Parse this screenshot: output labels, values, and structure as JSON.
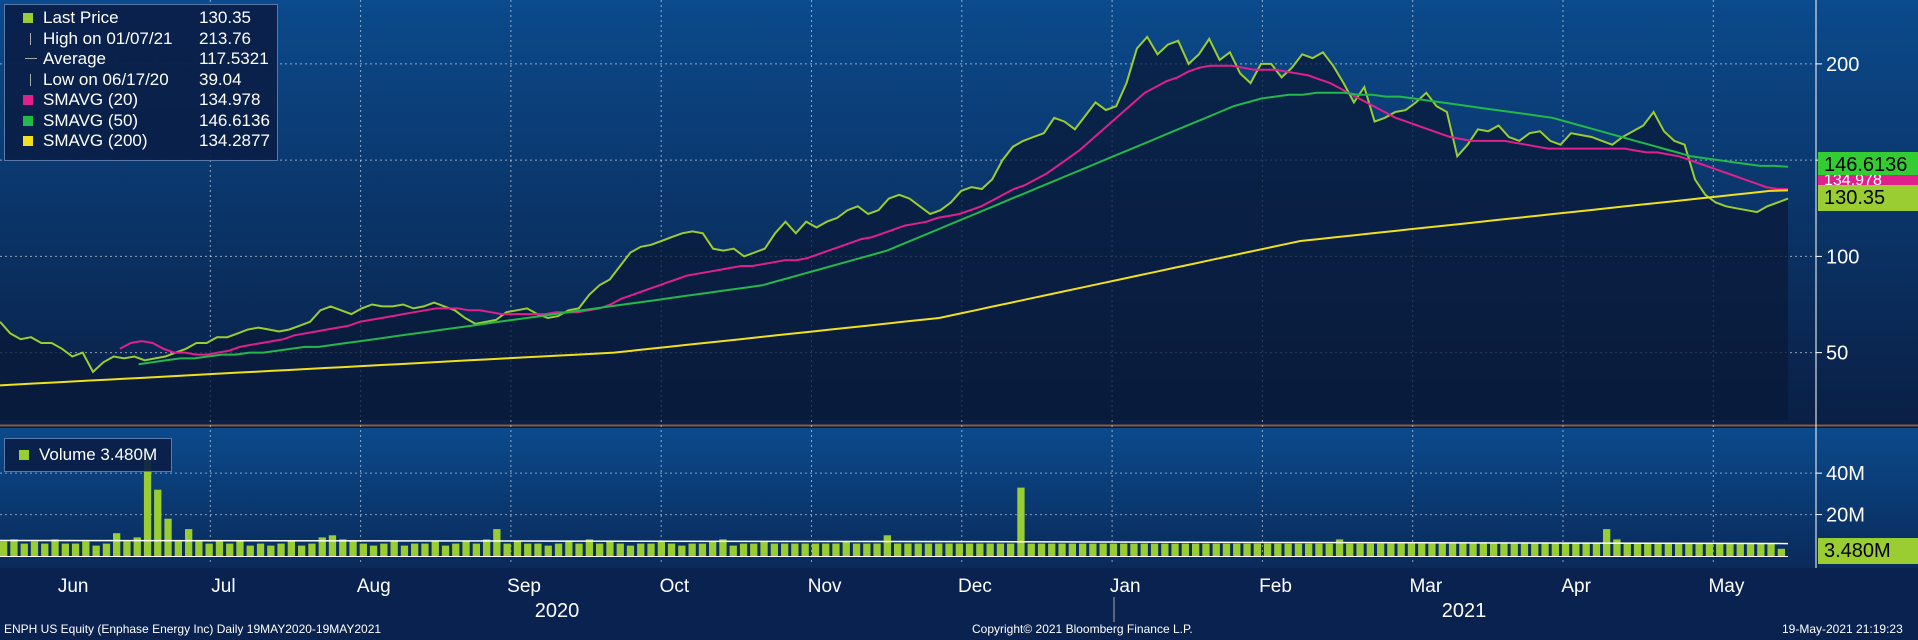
{
  "legend": {
    "items": [
      {
        "label": "Last Price",
        "value": "130.35",
        "color": "#9acd32",
        "mark": "square"
      },
      {
        "label": "High on 01/07/21",
        "value": "213.76",
        "color": "#aaaaaa",
        "mark": "high-tick"
      },
      {
        "label": "Average",
        "value": "117.5321",
        "color": "#aaaaaa",
        "mark": "dash"
      },
      {
        "label": "Low on 06/17/20",
        "value": "39.04",
        "color": "#aaaaaa",
        "mark": "low-tick"
      },
      {
        "label": "SMAVG (20)",
        "value": "134.978",
        "color": "#e0208c",
        "mark": "square"
      },
      {
        "label": "SMAVG (50)",
        "value": "146.6136",
        "color": "#22b84a",
        "mark": "square"
      },
      {
        "label": "SMAVG (200)",
        "value": "134.2877",
        "color": "#f0e020",
        "mark": "square"
      }
    ]
  },
  "volume_legend": {
    "label": "Volume 3.480M",
    "color": "#9acd32"
  },
  "tags": {
    "sma50": {
      "text": "146.6136",
      "color": "#33cc33"
    },
    "sma20": {
      "text": "134.978",
      "color": "#e0208c"
    },
    "last": {
      "text": "130.35",
      "color": "#9acd32"
    },
    "volume": {
      "text": "3.480M",
      "color": "#9acd32"
    }
  },
  "footer": {
    "left": "ENPH US Equity (Enphase Energy Inc)  Daily 19MAY2020-19MAY2021",
    "center": "Copyright© 2021 Bloomberg Finance L.P.",
    "right": "19-May-2021 21:19:23"
  },
  "chart_data": [
    {
      "type": "line",
      "title": "",
      "x_labels": [
        "Jun",
        "Jul",
        "Aug",
        "Sep",
        "Oct",
        "Nov",
        "Dec",
        "Jan",
        "Feb",
        "Mar",
        "Apr",
        "May"
      ],
      "years": [
        "2020",
        "2021"
      ],
      "y_ticks": [
        50,
        100,
        150,
        200
      ],
      "y_tick_labels": [
        "50",
        "100",
        "",
        "200"
      ],
      "ylim": [
        15,
        228
      ],
      "grid": true,
      "legend_position": "top-left",
      "colors": {
        "price": "#9acd32",
        "sma20": "#e0208c",
        "sma50": "#22b84a",
        "sma200": "#f0e020"
      },
      "series": [
        {
          "name": "Last Price",
          "key": "price",
          "values": [
            66,
            60,
            57,
            58,
            55,
            55,
            52,
            48,
            50,
            40,
            45,
            48,
            47,
            48,
            46,
            47,
            48,
            50,
            52,
            55,
            55,
            58,
            58,
            60,
            62,
            63,
            62,
            61,
            62,
            64,
            66,
            72,
            74,
            72,
            70,
            73,
            75,
            74,
            74,
            75,
            73,
            74,
            76,
            74,
            72,
            68,
            65,
            66,
            67,
            71,
            72,
            73,
            70,
            68,
            69,
            72,
            73,
            80,
            85,
            88,
            95,
            102,
            105,
            106,
            108,
            110,
            112,
            113,
            112,
            104,
            103,
            104,
            100,
            102,
            104,
            112,
            118,
            112,
            118,
            115,
            118,
            120,
            124,
            126,
            122,
            124,
            130,
            132,
            130,
            126,
            122,
            124,
            128,
            134,
            136,
            135,
            140,
            150,
            157,
            160,
            162,
            164,
            172,
            170,
            166,
            173,
            180,
            176,
            178,
            190,
            208,
            214,
            205,
            210,
            212,
            200,
            205,
            213,
            202,
            206,
            195,
            190,
            200,
            200,
            193,
            198,
            205,
            203,
            206,
            199,
            190,
            180,
            188,
            170,
            172,
            175,
            176,
            180,
            185,
            178,
            175,
            152,
            158,
            166,
            165,
            168,
            162,
            160,
            164,
            165,
            160,
            158,
            164,
            163,
            162,
            160,
            158,
            162,
            165,
            168,
            175,
            165,
            160,
            158,
            140,
            132,
            128,
            126,
            125,
            124,
            123,
            126,
            128,
            130
          ]
        },
        {
          "name": "SMAVG (20)",
          "key": "sma20",
          "values": [
            null,
            null,
            null,
            null,
            null,
            null,
            null,
            null,
            null,
            null,
            null,
            52,
            55,
            56,
            55,
            52,
            50,
            50,
            49,
            49,
            50,
            51,
            53,
            54,
            55,
            56,
            57,
            59,
            60,
            61,
            62,
            63,
            64,
            66,
            67,
            68,
            69,
            70,
            71,
            72,
            73,
            73,
            73,
            72,
            72,
            71,
            70,
            70,
            70,
            70,
            70,
            71,
            71,
            71,
            72,
            73,
            75,
            78,
            80,
            82,
            84,
            86,
            88,
            90,
            91,
            92,
            93,
            94,
            95,
            95,
            96,
            97,
            98,
            98,
            99,
            101,
            103,
            105,
            107,
            109,
            110,
            112,
            114,
            116,
            117,
            118,
            120,
            121,
            122,
            124,
            126,
            129,
            132,
            135,
            137,
            140,
            143,
            147,
            151,
            155,
            160,
            165,
            170,
            175,
            180,
            185,
            188,
            191,
            193,
            196,
            198,
            199,
            199,
            199,
            198,
            197,
            197,
            197,
            196,
            195,
            194,
            192,
            190,
            187,
            184,
            181,
            178,
            175,
            172,
            170,
            168,
            166,
            164,
            162,
            161,
            160,
            160,
            160,
            160,
            159,
            158,
            157,
            156,
            156,
            156,
            156,
            156,
            156,
            156,
            156,
            155,
            154,
            154,
            153,
            152,
            150,
            148,
            146,
            144,
            142,
            140,
            138,
            136,
            135,
            134.978
          ]
        },
        {
          "name": "SMAVG (50)",
          "key": "sma50",
          "values": [
            null,
            null,
            null,
            null,
            null,
            null,
            null,
            null,
            null,
            null,
            44,
            45,
            46,
            47,
            47,
            48,
            49,
            49,
            50,
            50,
            51,
            52,
            53,
            53,
            54,
            55,
            56,
            57,
            58,
            59,
            60,
            61,
            62,
            63,
            64,
            65,
            66,
            67,
            68,
            69,
            70,
            71,
            72,
            73,
            74,
            75,
            76,
            77,
            78,
            79,
            80,
            81,
            82,
            83,
            84,
            85,
            87,
            89,
            91,
            93,
            95,
            97,
            99,
            101,
            103,
            106,
            109,
            112,
            115,
            118,
            121,
            124,
            127,
            130,
            133,
            136,
            139,
            142,
            145,
            148,
            151,
            154,
            157,
            160,
            163,
            166,
            169,
            172,
            175,
            178,
            180,
            182,
            183,
            184,
            184,
            185,
            185,
            185,
            184,
            184,
            183,
            183,
            182,
            181,
            180,
            179,
            178,
            177,
            176,
            175,
            174,
            173,
            172,
            170,
            168,
            166,
            164,
            162,
            160,
            158,
            156,
            154,
            152,
            151,
            150,
            149,
            148,
            147,
            147,
            146.6136
          ]
        },
        {
          "name": "SMAVG (200)",
          "key": "sma200",
          "values": [
            33,
            33.5,
            34,
            34.5,
            35,
            35.5,
            36,
            36.5,
            37,
            37.5,
            38,
            38.5,
            39,
            39.5,
            40,
            40.5,
            41,
            41.5,
            42,
            42.5,
            43,
            43.5,
            44,
            44.5,
            45,
            45.5,
            46,
            46.5,
            47,
            47.5,
            48,
            48.5,
            49,
            49.5,
            50,
            51,
            52,
            53,
            54,
            55,
            56,
            57,
            58,
            59,
            60,
            61,
            62,
            63,
            64,
            65,
            66,
            67,
            68,
            70,
            72,
            74,
            76,
            78,
            80,
            82,
            84,
            86,
            88,
            90,
            92,
            94,
            96,
            98,
            100,
            102,
            104,
            106,
            108,
            109,
            110,
            111,
            112,
            113,
            114,
            115,
            116,
            117,
            118,
            119,
            120,
            121,
            122,
            123,
            124,
            125,
            126,
            127,
            128,
            129,
            130,
            131,
            132,
            133,
            134,
            134.2877
          ]
        }
      ]
    },
    {
      "type": "bar",
      "title": "",
      "y_ticks": [
        20,
        40
      ],
      "y_tick_labels": [
        "20M",
        "40M"
      ],
      "ylim": [
        0,
        56
      ],
      "series": [
        {
          "name": "Volume",
          "color": "#9acd32",
          "values": [
            7,
            8,
            6,
            7,
            6,
            8,
            6,
            6,
            7,
            5,
            6,
            11,
            7,
            9,
            50,
            32,
            18,
            7,
            13,
            7,
            6,
            7,
            6,
            7,
            5,
            6,
            5,
            6,
            7,
            5,
            6,
            9,
            10,
            8,
            7,
            6,
            5,
            6,
            7,
            5,
            6,
            6,
            7,
            5,
            6,
            7,
            6,
            8,
            13,
            6,
            7,
            6,
            6,
            5,
            6,
            7,
            6,
            8,
            6,
            7,
            6,
            5,
            6,
            6,
            7,
            6,
            5,
            6,
            6,
            7,
            8,
            5,
            6,
            6,
            7,
            6,
            6,
            6,
            6,
            6,
            6,
            6,
            7,
            6,
            6,
            6,
            10,
            6,
            6,
            6,
            6,
            6,
            6,
            6,
            6,
            6,
            6,
            6,
            6,
            33,
            6,
            6,
            6,
            6,
            6,
            6,
            6,
            6,
            6,
            6,
            6,
            6,
            6,
            6,
            6,
            6,
            6,
            6,
            6,
            6,
            6,
            6,
            6,
            6,
            6,
            6,
            6,
            6,
            6,
            6,
            8,
            6,
            6,
            6,
            6,
            6,
            6,
            6,
            6,
            6,
            6,
            6,
            6,
            6,
            6,
            6,
            6,
            6,
            6,
            6,
            6,
            6,
            6,
            6,
            6,
            6,
            13,
            8,
            6,
            6,
            6,
            6,
            6,
            6,
            6,
            6,
            6,
            6,
            6,
            6,
            6,
            6,
            6,
            3.48
          ]
        }
      ]
    }
  ]
}
